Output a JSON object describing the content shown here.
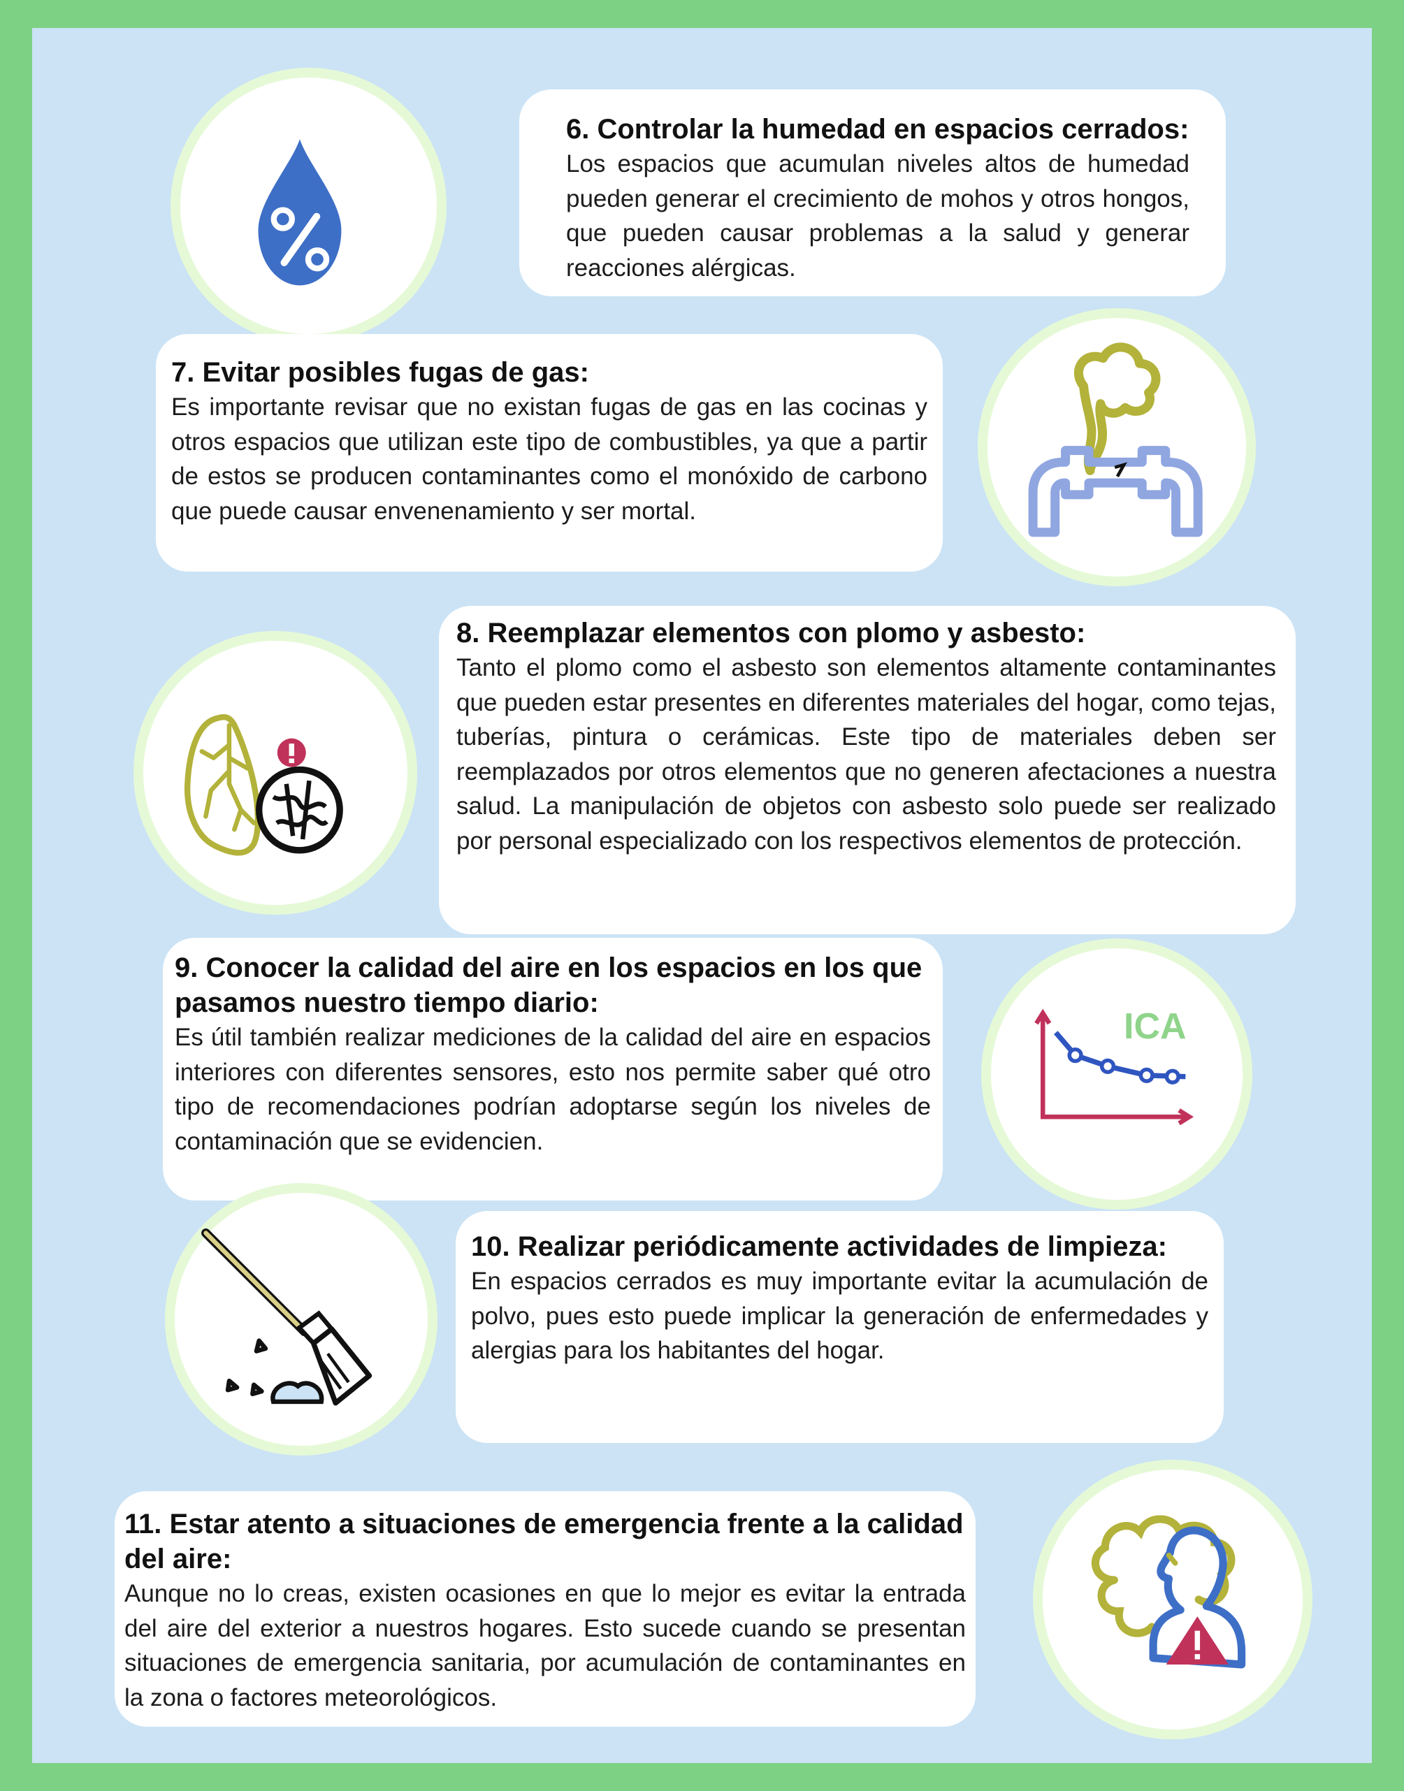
{
  "colors": {
    "outer_border": "#7dd184",
    "background": "#cbe3f5",
    "card": "#ffffff",
    "circle_ring": "#e6f9d7",
    "blue": "#3e6fc7",
    "olive": "#b3b23a",
    "light_blue": "#8fa6e0",
    "crimson": "#c0325a",
    "green_text": "#8fd48a"
  },
  "items": [
    {
      "title": "6. Controlar la humedad en espacios cerrados:",
      "body": "Los espacios que acumulan niveles altos de humedad pueden generar el crecimiento de mohos y otros hongos, que pueden causar problemas a la salud y generar reacciones alérgicas.",
      "icon": "humidity-drop-icon"
    },
    {
      "title": "7. Evitar posibles fugas de gas:",
      "body": "Es importante revisar que no existan fugas de gas en las cocinas y otros espacios que utilizan este tipo de combustibles, ya que a partir de estos se producen contaminantes como el monóxido de carbono que puede causar envenenamiento y ser mortal.",
      "icon": "gas-leak-pipe-icon"
    },
    {
      "title": "8. Reemplazar elementos con plomo y asbesto:",
      "body": "Tanto el plomo como el asbesto son elementos altamente conta­minantes que pueden estar presentes en diferentes materiales del hogar, como tejas, tuberías, pintura o cerámicas. Este tipo de materiales deben ser reemplazados por otros elementos que no generen afectaciones a nuestra salud. La manipulación de objetos con asbesto solo puede ser realizado por personal especializado con los respectivos elementos de protección.",
      "icon": "lung-warning-icon"
    },
    {
      "title": "9. Conocer la calidad del aire en los espacios en los que pasamos nuestro tiempo diario:",
      "body": "Es útil también realizar mediciones de la calidad del aire en espacios interiores con diferentes sensores, esto nos permite saber qué otro tipo de recomendaciones podrían adoptarse según los niveles de contaminación que se evidencien.",
      "icon": "air-quality-chart-icon",
      "icon_label": "ICA"
    },
    {
      "title": "10. Realizar periódicamente actividades de limpieza:",
      "body": "En espacios cerrados es muy importante evitar la acumula­ción de polvo, pues esto puede implicar la generación de enfermedades y alergias para los habitantes del hogar.",
      "icon": "broom-icon"
    },
    {
      "title": "11. Estar atento a situaciones de emergencia frente a la calidad del aire:",
      "body": "Aunque no lo creas, existen ocasiones en que lo mejor es evitar la entrada del aire del exterior a nuestros hogares. Esto sucede cuando se presentan situaciones  de emergencia sanitaria, por acumulación de contaminantes en la zona o factores meteorológicos.",
      "icon": "person-smoke-warning-icon"
    }
  ]
}
